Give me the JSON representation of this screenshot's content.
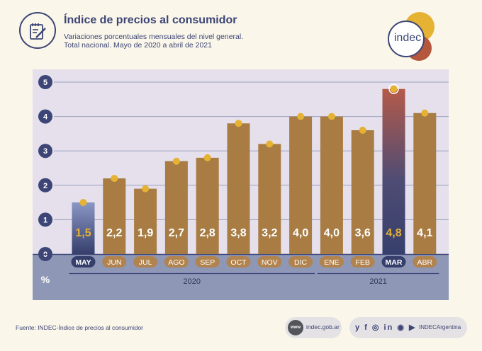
{
  "header": {
    "title": "Índice de precios al consumidor",
    "subtitle_line1": "Variaciones porcentuales mensuales del nivel general.",
    "subtitle_line2": "Total nacional. Mayo de 2020 a abril de 2021"
  },
  "logo": {
    "text": "indec"
  },
  "chart_data": {
    "type": "bar",
    "categories": [
      "MAY",
      "JUN",
      "JUL",
      "AGO",
      "SEP",
      "OCT",
      "NOV",
      "DIC",
      "ENE",
      "FEB",
      "MAR",
      "ABR"
    ],
    "values": [
      1.5,
      2.2,
      1.9,
      2.7,
      2.8,
      3.8,
      3.2,
      4.0,
      4.0,
      3.6,
      4.8,
      4.1
    ],
    "value_labels": [
      "1,5",
      "2,2",
      "1,9",
      "2,7",
      "2,8",
      "3,8",
      "3,2",
      "4,0",
      "4,0",
      "3,6",
      "4,8",
      "4,1"
    ],
    "yticks": [
      "0",
      "1",
      "2",
      "3",
      "4",
      "5"
    ],
    "ylim": [
      0,
      5
    ],
    "ylabel": "%",
    "highlighted": [
      "MAY",
      "MAR"
    ],
    "year_groups": [
      {
        "label": "2020",
        "months": [
          "MAY",
          "JUN",
          "JUL",
          "AGO",
          "SEP",
          "OCT",
          "NOV",
          "DIC"
        ]
      },
      {
        "label": "2021",
        "months": [
          "ENE",
          "FEB",
          "MAR",
          "ABR"
        ]
      }
    ],
    "grid": true,
    "colors": {
      "bar": "#a87c43",
      "marker": "#e6b233",
      "highlight_top": "#8a96c4",
      "highlight_bottom": "#363f6c",
      "max_top": "#b45a4a",
      "label_pill": "#b1834e",
      "label_pill_highlight": "#363f6c"
    }
  },
  "footer": {
    "source": "Fuente: INDEC-Índice de precios al consumidor",
    "globe_icon_text": "www",
    "website": "indec.gob.ar",
    "social_icons_text": "y f ◎ in ◉ ▶",
    "social_name": "INDECArgentina"
  }
}
